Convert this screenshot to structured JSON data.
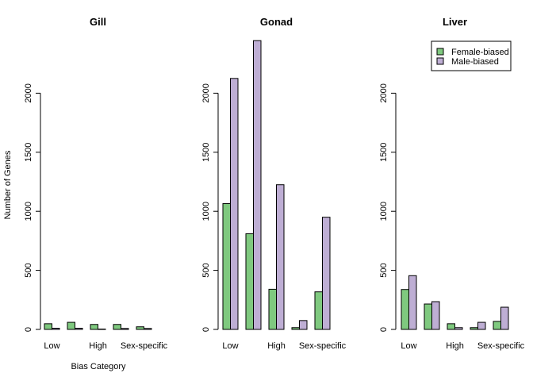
{
  "colors": {
    "female": "#7fc97f",
    "male": "#beaed4",
    "stroke": "#000000"
  },
  "chart_data": [
    {
      "type": "bar",
      "title": "Gill",
      "categories": [
        "Low",
        "",
        "High",
        "",
        "Sex-specific"
      ],
      "series": [
        {
          "name": "Female-biased",
          "values": [
            48,
            60,
            42,
            42,
            22
          ]
        },
        {
          "name": "Male-biased",
          "values": [
            10,
            10,
            3,
            8,
            8
          ]
        }
      ],
      "xlabel": "Bias Category",
      "ylabel": "Number of Genes",
      "ylim": [
        0,
        2460
      ],
      "yticks": [
        "0",
        "500",
        "1000",
        "1500",
        "2000"
      ],
      "legend": null
    },
    {
      "type": "bar",
      "title": "Gonad",
      "categories": [
        "Low",
        "",
        "High",
        "",
        "Sex-specific"
      ],
      "series": [
        {
          "name": "Female-biased",
          "values": [
            1065,
            810,
            340,
            15,
            318
          ]
        },
        {
          "name": "Male-biased",
          "values": [
            2125,
            2445,
            1225,
            75,
            950
          ]
        }
      ],
      "xlabel": "",
      "ylabel": "",
      "ylim": [
        0,
        2460
      ],
      "yticks": [
        "0",
        "500",
        "1000",
        "1500",
        "2000"
      ],
      "legend": null
    },
    {
      "type": "bar",
      "title": "Liver",
      "categories": [
        "Low",
        "",
        "High",
        "",
        "Sex-specific"
      ],
      "series": [
        {
          "name": "Female-biased",
          "values": [
            338,
            215,
            48,
            15,
            68
          ]
        },
        {
          "name": "Male-biased",
          "values": [
            455,
            235,
            15,
            60,
            188
          ]
        }
      ],
      "xlabel": "",
      "ylabel": "",
      "ylim": [
        0,
        2460
      ],
      "yticks": [
        "0",
        "500",
        "1000",
        "1500",
        "2000"
      ],
      "legend": {
        "position": "top-right",
        "entries": [
          "Female-biased",
          "Male-biased"
        ]
      }
    }
  ]
}
